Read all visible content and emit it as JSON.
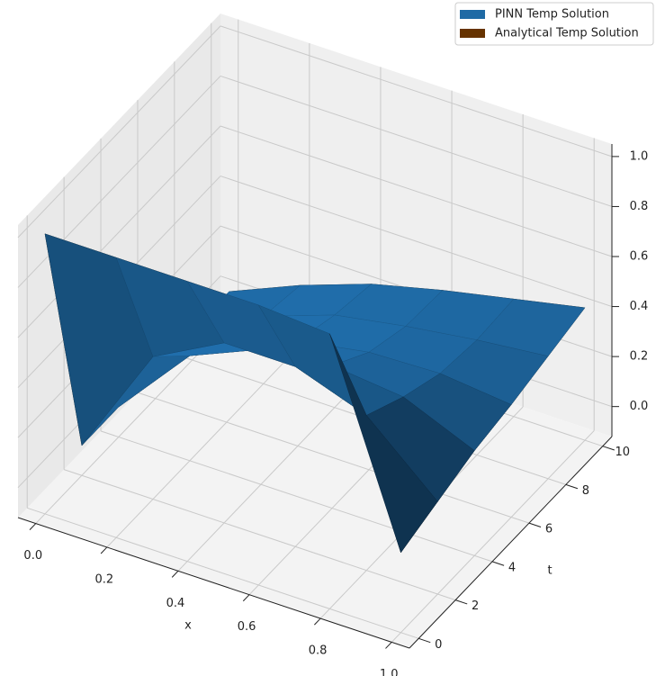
{
  "chart_data": {
    "type": "surface3d",
    "x_label": "x",
    "y_label": "t",
    "x": [
      0,
      0.2,
      0.4,
      0.6,
      0.8,
      1.0
    ],
    "t": [
      0,
      2,
      4,
      6,
      8,
      10
    ],
    "series": [
      {
        "name": "PINN Temp Solution",
        "color": "#1f6aa5",
        "values": [
          [
            1.0,
            1.0,
            1.0,
            1.0,
            0.98,
            0.2
          ],
          [
            0.0,
            0.45,
            0.6,
            0.6,
            0.5,
            0.25
          ],
          [
            0.0,
            0.3,
            0.42,
            0.45,
            0.42,
            0.3
          ],
          [
            0.0,
            0.2,
            0.3,
            0.35,
            0.36,
            0.33
          ],
          [
            0.0,
            0.15,
            0.25,
            0.3,
            0.34,
            0.37
          ],
          [
            0.0,
            0.12,
            0.22,
            0.29,
            0.35,
            0.41
          ]
        ]
      },
      {
        "name": "Analytical Temp Solution",
        "color": "#663300",
        "values": [
          [
            1.0,
            1.0,
            1.0,
            1.0,
            1.0,
            0.2
          ],
          [
            0.0,
            0.45,
            0.6,
            0.6,
            0.5,
            0.25
          ],
          [
            0.0,
            0.3,
            0.42,
            0.45,
            0.42,
            0.3
          ],
          [
            0.0,
            0.2,
            0.3,
            0.35,
            0.36,
            0.33
          ],
          [
            0.0,
            0.15,
            0.25,
            0.3,
            0.34,
            0.37
          ],
          [
            0.0,
            0.12,
            0.22,
            0.29,
            0.35,
            0.41
          ]
        ]
      }
    ],
    "xlim": [
      -0.05,
      1.05
    ],
    "xticks": [
      {
        "value": 0,
        "label": "0.0"
      },
      {
        "value": 0.2,
        "label": "0.2"
      },
      {
        "value": 0.4,
        "label": "0.4"
      },
      {
        "value": 0.6,
        "label": "0.6"
      },
      {
        "value": 0.8,
        "label": "0.8"
      },
      {
        "value": 1.0,
        "label": "1.0"
      }
    ],
    "ylim": [
      -0.5,
      10.5
    ],
    "yticks": [
      0,
      2,
      4,
      6,
      8,
      10
    ],
    "zlim": [
      -0.12,
      1.05
    ],
    "zticks": [
      {
        "value": 0,
        "label": "0.0"
      },
      {
        "value": 0.2,
        "label": "0.2"
      },
      {
        "value": 0.4,
        "label": "0.4"
      },
      {
        "value": 0.6,
        "label": "0.6"
      },
      {
        "value": 0.8,
        "label": "0.8"
      },
      {
        "value": 1.0,
        "label": "1.0"
      }
    ],
    "grid": true,
    "legend": "upper right"
  }
}
